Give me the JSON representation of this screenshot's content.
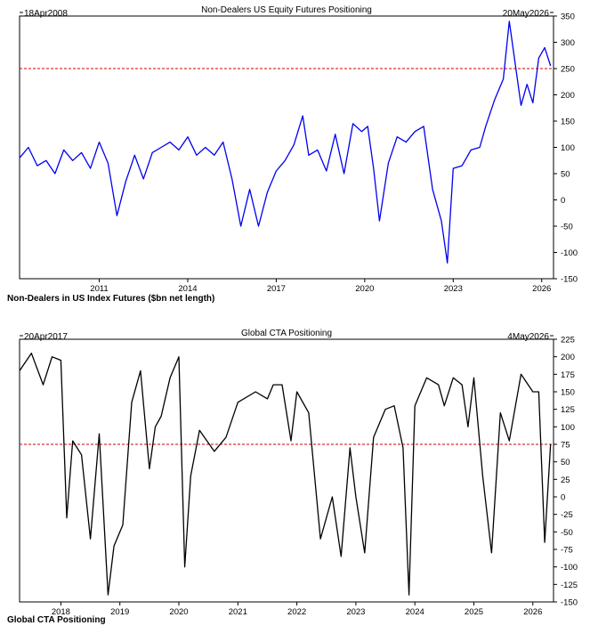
{
  "chart_data": [
    {
      "type": "line",
      "title": "Non-Dealers US Equity Futures Positioning",
      "start_label": "18Apr2008",
      "end_label": "20May2026",
      "legend": "Non-Dealers in US Index Futures ($bn net length)",
      "legend_color": "#1a1aff",
      "line_color": "#0000ee",
      "ref_line_color": "#cc0000",
      "ylim": [
        -150,
        350
      ],
      "xlim": [
        2008.3,
        2026.4
      ],
      "reference_level": 250,
      "y_ticks": [
        350,
        300,
        250,
        200,
        150,
        100,
        50,
        0,
        -50,
        -100,
        -150
      ],
      "x_ticks": [
        "2011",
        "2014",
        "2017",
        "2020",
        "2023",
        "2026"
      ],
      "series": [
        {
          "x": [
            2008.3,
            2008.6,
            2008.9,
            2009.2,
            2009.5,
            2009.8,
            2010.1,
            2010.4,
            2010.7,
            2011.0,
            2011.3,
            2011.6,
            2011.9,
            2012.2,
            2012.5,
            2012.8,
            2013.1,
            2013.4,
            2013.7,
            2014.0,
            2014.3,
            2014.6,
            2014.9,
            2015.2,
            2015.5,
            2015.8,
            2016.1,
            2016.4,
            2016.7,
            2017.0,
            2017.3,
            2017.6,
            2017.9,
            2018.1,
            2018.4,
            2018.7,
            2019.0,
            2019.3,
            2019.6,
            2019.9,
            2020.1,
            2020.3,
            2020.5,
            2020.8,
            2021.1,
            2021.4,
            2021.7,
            2022.0,
            2022.3,
            2022.6,
            2022.8,
            2023.0,
            2023.3,
            2023.6,
            2023.9,
            2024.1,
            2024.4,
            2024.7,
            2024.9,
            2025.1,
            2025.3,
            2025.5,
            2025.7,
            2025.9,
            2026.1,
            2026.3
          ],
          "values": [
            80,
            100,
            65,
            75,
            50,
            95,
            75,
            90,
            60,
            110,
            70,
            -30,
            35,
            85,
            40,
            90,
            100,
            110,
            95,
            120,
            85,
            100,
            85,
            110,
            40,
            -50,
            20,
            -50,
            15,
            55,
            75,
            105,
            160,
            85,
            95,
            55,
            125,
            50,
            145,
            130,
            140,
            60,
            -40,
            70,
            120,
            110,
            130,
            140,
            20,
            -40,
            -120,
            60,
            65,
            95,
            100,
            140,
            190,
            230,
            340,
            260,
            180,
            220,
            185,
            270,
            290,
            255
          ]
        }
      ]
    },
    {
      "type": "line",
      "title": "Global CTA Positioning",
      "start_label": "20Apr2017",
      "end_label": "4May2026",
      "legend": "Global CTA Positioning",
      "line_color": "#000000",
      "ref_line_color": "#cc0000",
      "ylim": [
        -150,
        225
      ],
      "xlim": [
        2017.3,
        2026.35
      ],
      "reference_level": 75,
      "y_ticks": [
        225,
        200,
        175,
        150,
        125,
        100,
        75,
        50,
        25,
        0,
        -25,
        -50,
        -75,
        -100,
        -125,
        -150
      ],
      "x_ticks": [
        "2018",
        "2019",
        "2020",
        "2021",
        "2022",
        "2023",
        "2024",
        "2025",
        "2026"
      ],
      "series": [
        {
          "x": [
            2017.3,
            2017.5,
            2017.7,
            2017.85,
            2018.0,
            2018.1,
            2018.2,
            2018.35,
            2018.5,
            2018.65,
            2018.8,
            2018.9,
            2019.05,
            2019.2,
            2019.35,
            2019.5,
            2019.6,
            2019.7,
            2019.85,
            2020.0,
            2020.1,
            2020.2,
            2020.35,
            2020.6,
            2020.8,
            2021.0,
            2021.3,
            2021.5,
            2021.6,
            2021.75,
            2021.9,
            2022.0,
            2022.2,
            2022.4,
            2022.6,
            2022.75,
            2022.9,
            2023.0,
            2023.15,
            2023.3,
            2023.5,
            2023.65,
            2023.8,
            2023.9,
            2024.0,
            2024.2,
            2024.4,
            2024.5,
            2024.65,
            2024.8,
            2024.9,
            2025.0,
            2025.15,
            2025.3,
            2025.45,
            2025.6,
            2025.8,
            2026.0,
            2026.1,
            2026.2,
            2026.3
          ],
          "values": [
            180,
            205,
            160,
            200,
            195,
            -30,
            80,
            60,
            -60,
            90,
            -140,
            -70,
            -40,
            135,
            180,
            40,
            100,
            115,
            170,
            200,
            -100,
            30,
            95,
            65,
            85,
            135,
            150,
            140,
            160,
            160,
            80,
            150,
            120,
            -60,
            0,
            -85,
            70,
            0,
            -80,
            85,
            125,
            130,
            70,
            -140,
            130,
            170,
            160,
            130,
            170,
            160,
            100,
            170,
            30,
            -80,
            120,
            80,
            175,
            150,
            150,
            -65,
            75
          ]
        }
      ]
    }
  ]
}
